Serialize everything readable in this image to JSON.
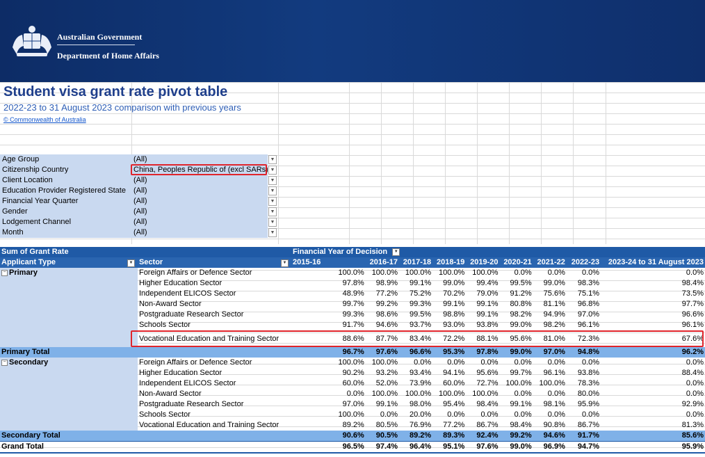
{
  "header": {
    "org_line1": "Australian Government",
    "org_line2": "Department of Home Affairs"
  },
  "title": "Student visa grant rate pivot table",
  "subtitle": "2022-23 to 31 August 2023 comparison with previous years",
  "copyright_link": "© Commonwealth of Australia",
  "filters": [
    {
      "label": "Age Group",
      "value": "(All)"
    },
    {
      "label": "Citizenship Country",
      "value": "China, Peoples Republic of (excl SARs)"
    },
    {
      "label": "Client Location",
      "value": "(All)"
    },
    {
      "label": "Education Provider Registered State",
      "value": "(All)"
    },
    {
      "label": "Financial Year Quarter",
      "value": "(All)"
    },
    {
      "label": "Gender",
      "value": "(All)"
    },
    {
      "label": "Lodgement Channel",
      "value": "(All)"
    },
    {
      "label": "Month",
      "value": "(All)"
    }
  ],
  "pivot": {
    "measure": "Sum of Grant Rate",
    "column_field": "Financial Year of Decision",
    "row_field_1": "Applicant Type",
    "row_field_2": "Sector",
    "years": [
      "2015-16",
      "2016-17",
      "2017-18",
      "2018-19",
      "2019-20",
      "2020-21",
      "2021-22",
      "2022-23",
      "2023-24 to 31 August 2023"
    ],
    "groups": [
      {
        "name": "Primary",
        "rows": [
          {
            "sector": "Foreign Affairs or Defence Sector",
            "values": [
              "100.0%",
              "100.0%",
              "100.0%",
              "100.0%",
              "100.0%",
              "0.0%",
              "0.0%",
              "0.0%",
              "0.0%"
            ]
          },
          {
            "sector": "Higher Education Sector",
            "values": [
              "97.8%",
              "98.9%",
              "99.1%",
              "99.0%",
              "99.4%",
              "99.5%",
              "99.0%",
              "98.3%",
              "98.4%"
            ]
          },
          {
            "sector": "Independent ELICOS Sector",
            "values": [
              "48.9%",
              "77.2%",
              "75.2%",
              "70.2%",
              "79.0%",
              "91.2%",
              "75.6%",
              "75.1%",
              "73.5%"
            ]
          },
          {
            "sector": "Non-Award Sector",
            "values": [
              "99.7%",
              "99.2%",
              "99.3%",
              "99.1%",
              "99.1%",
              "80.8%",
              "81.1%",
              "96.8%",
              "97.7%"
            ]
          },
          {
            "sector": "Postgraduate Research Sector",
            "values": [
              "99.3%",
              "98.6%",
              "99.5%",
              "98.8%",
              "99.1%",
              "98.2%",
              "94.9%",
              "97.0%",
              "96.6%"
            ]
          },
          {
            "sector": "Schools Sector",
            "values": [
              "91.7%",
              "94.6%",
              "93.7%",
              "93.0%",
              "93.8%",
              "99.0%",
              "98.2%",
              "96.1%",
              "96.1%"
            ]
          },
          {
            "sector": "Vocational Education and Training Sector",
            "values": [
              "88.6%",
              "87.7%",
              "83.4%",
              "72.2%",
              "88.1%",
              "95.6%",
              "81.0%",
              "72.3%",
              "67.6%"
            ]
          }
        ],
        "total_label": "Primary Total",
        "total": [
          "96.7%",
          "97.6%",
          "96.6%",
          "95.3%",
          "97.8%",
          "99.0%",
          "97.0%",
          "94.8%",
          "96.2%"
        ]
      },
      {
        "name": "Secondary",
        "rows": [
          {
            "sector": "Foreign Affairs or Defence Sector",
            "values": [
              "100.0%",
              "100.0%",
              "0.0%",
              "0.0%",
              "0.0%",
              "0.0%",
              "0.0%",
              "0.0%",
              "0.0%"
            ]
          },
          {
            "sector": "Higher Education Sector",
            "values": [
              "90.2%",
              "93.2%",
              "93.4%",
              "94.1%",
              "95.6%",
              "99.7%",
              "96.1%",
              "93.8%",
              "88.4%"
            ]
          },
          {
            "sector": "Independent ELICOS Sector",
            "values": [
              "60.0%",
              "52.0%",
              "73.9%",
              "60.0%",
              "72.7%",
              "100.0%",
              "100.0%",
              "78.3%",
              "0.0%"
            ]
          },
          {
            "sector": "Non-Award Sector",
            "values": [
              "0.0%",
              "100.0%",
              "100.0%",
              "100.0%",
              "100.0%",
              "0.0%",
              "0.0%",
              "80.0%",
              "0.0%"
            ]
          },
          {
            "sector": "Postgraduate Research Sector",
            "values": [
              "97.0%",
              "99.1%",
              "98.0%",
              "95.4%",
              "98.4%",
              "99.1%",
              "98.1%",
              "95.9%",
              "92.9%"
            ]
          },
          {
            "sector": "Schools Sector",
            "values": [
              "100.0%",
              "0.0%",
              "20.0%",
              "0.0%",
              "0.0%",
              "0.0%",
              "0.0%",
              "0.0%",
              "0.0%"
            ]
          },
          {
            "sector": "Vocational Education and Training Sector",
            "values": [
              "89.2%",
              "80.5%",
              "76.9%",
              "77.2%",
              "86.7%",
              "98.4%",
              "90.8%",
              "86.7%",
              "81.3%"
            ]
          }
        ],
        "total_label": "Secondary Total",
        "total": [
          "90.6%",
          "90.5%",
          "89.2%",
          "89.3%",
          "92.4%",
          "99.2%",
          "94.6%",
          "91.7%",
          "85.6%"
        ]
      }
    ],
    "grand_total_label": "Grand Total",
    "grand_total": [
      "96.5%",
      "97.4%",
      "96.4%",
      "95.1%",
      "97.6%",
      "99.0%",
      "96.9%",
      "94.7%",
      "95.9%"
    ]
  },
  "colors": {
    "banner": "#123b7f",
    "header_blue": "#1f5aa6",
    "label_fill": "#c9d9f0",
    "total_fill": "#7fb1e8",
    "highlight_red": "#e0242b",
    "title_blue": "#1f3f8c"
  }
}
